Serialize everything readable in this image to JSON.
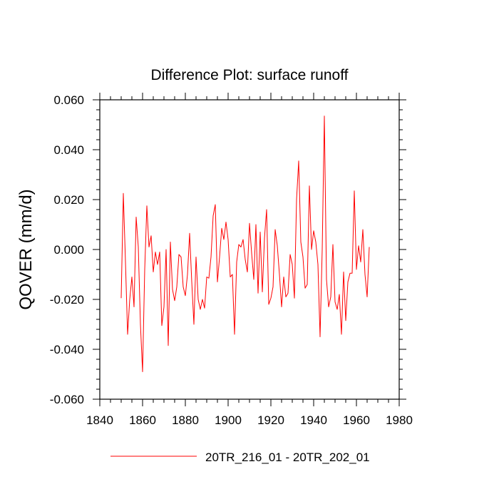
{
  "chart_data": {
    "type": "line",
    "title": "Difference Plot: surface runoff",
    "ylabel": "QOVER  (mm/d)",
    "xlabel": "",
    "xlim": [
      1840,
      1980
    ],
    "ylim": [
      -0.06,
      0.06
    ],
    "x_ticks": [
      1840,
      1860,
      1880,
      1900,
      1920,
      1940,
      1960,
      1980
    ],
    "x_tick_labels": [
      "1840",
      "1860",
      "1880",
      "1900",
      "1920",
      "1940",
      "1960",
      "1980"
    ],
    "y_ticks": [
      -0.06,
      -0.04,
      -0.02,
      0.0,
      0.02,
      0.04,
      0.06
    ],
    "y_tick_labels": [
      "-0.060",
      "-0.040",
      "-0.020",
      "0.000",
      "0.020",
      "0.040",
      "0.060"
    ],
    "grid": false,
    "legend_position": "bottom",
    "series": [
      {
        "name": "20TR_216_01 - 20TR_202_01",
        "color": "#ff0000",
        "x": [
          1850,
          1851,
          1852,
          1853,
          1854,
          1855,
          1856,
          1857,
          1858,
          1859,
          1860,
          1861,
          1862,
          1863,
          1864,
          1865,
          1866,
          1867,
          1868,
          1869,
          1870,
          1871,
          1872,
          1873,
          1874,
          1875,
          1876,
          1877,
          1878,
          1879,
          1880,
          1881,
          1882,
          1883,
          1884,
          1885,
          1886,
          1887,
          1888,
          1889,
          1890,
          1891,
          1892,
          1893,
          1894,
          1895,
          1896,
          1897,
          1898,
          1899,
          1900,
          1901,
          1902,
          1903,
          1904,
          1905,
          1906,
          1907,
          1908,
          1909,
          1910,
          1911,
          1912,
          1913,
          1914,
          1915,
          1916,
          1917,
          1918,
          1919,
          1920,
          1921,
          1922,
          1923,
          1924,
          1925,
          1926,
          1927,
          1928,
          1929,
          1930,
          1931,
          1932,
          1933,
          1934,
          1935,
          1936,
          1937,
          1938,
          1939,
          1940,
          1941,
          1942,
          1943,
          1944,
          1945,
          1946,
          1947,
          1948,
          1949,
          1950,
          1951,
          1952,
          1953,
          1954,
          1955,
          1956,
          1957,
          1958,
          1959,
          1960,
          1961,
          1962,
          1963,
          1964,
          1965,
          1966
        ],
        "values": [
          -0.0195,
          0.0225,
          -0.005,
          -0.034,
          -0.02,
          -0.011,
          -0.023,
          0.013,
          0.001,
          -0.03,
          -0.049,
          -0.008,
          0.0175,
          0.001,
          0.0055,
          -0.009,
          -0.001,
          -0.006,
          -0.001,
          -0.0305,
          -0.023,
          0.0,
          -0.0385,
          0.003,
          -0.016,
          -0.0205,
          -0.015,
          -0.002,
          -0.003,
          -0.015,
          -0.0185,
          -0.01,
          0.0065,
          -0.013,
          -0.03,
          -0.003,
          -0.02,
          -0.024,
          -0.02,
          -0.0235,
          -0.011,
          -0.0115,
          -0.003,
          0.0135,
          0.018,
          -0.013,
          -0.003,
          0.0085,
          0.004,
          0.011,
          0.004,
          -0.011,
          -0.01,
          -0.034,
          -0.005,
          0.002,
          0.001,
          0.004,
          -0.004,
          -0.009,
          0.0105,
          -0.0015,
          -0.012,
          0.01,
          -0.0175,
          0.007,
          -0.017,
          0.0045,
          0.016,
          -0.022,
          -0.0195,
          -0.015,
          0.008,
          0.0015,
          -0.01,
          -0.023,
          -0.011,
          -0.019,
          -0.0175,
          -0.002,
          -0.006,
          -0.0195,
          0.02,
          0.0355,
          0.003,
          -0.003,
          -0.0155,
          -0.014,
          0.0255,
          0.0,
          0.0075,
          0.003,
          -0.006,
          -0.035,
          0.0,
          0.0535,
          -0.012,
          -0.023,
          -0.019,
          0.002,
          -0.021,
          -0.024,
          -0.018,
          -0.034,
          -0.009,
          -0.0285,
          -0.013,
          -0.0095,
          -0.0095,
          0.0235,
          -0.008,
          0.0015,
          -0.005,
          0.008,
          -0.01,
          -0.019,
          0.001
        ]
      }
    ]
  }
}
